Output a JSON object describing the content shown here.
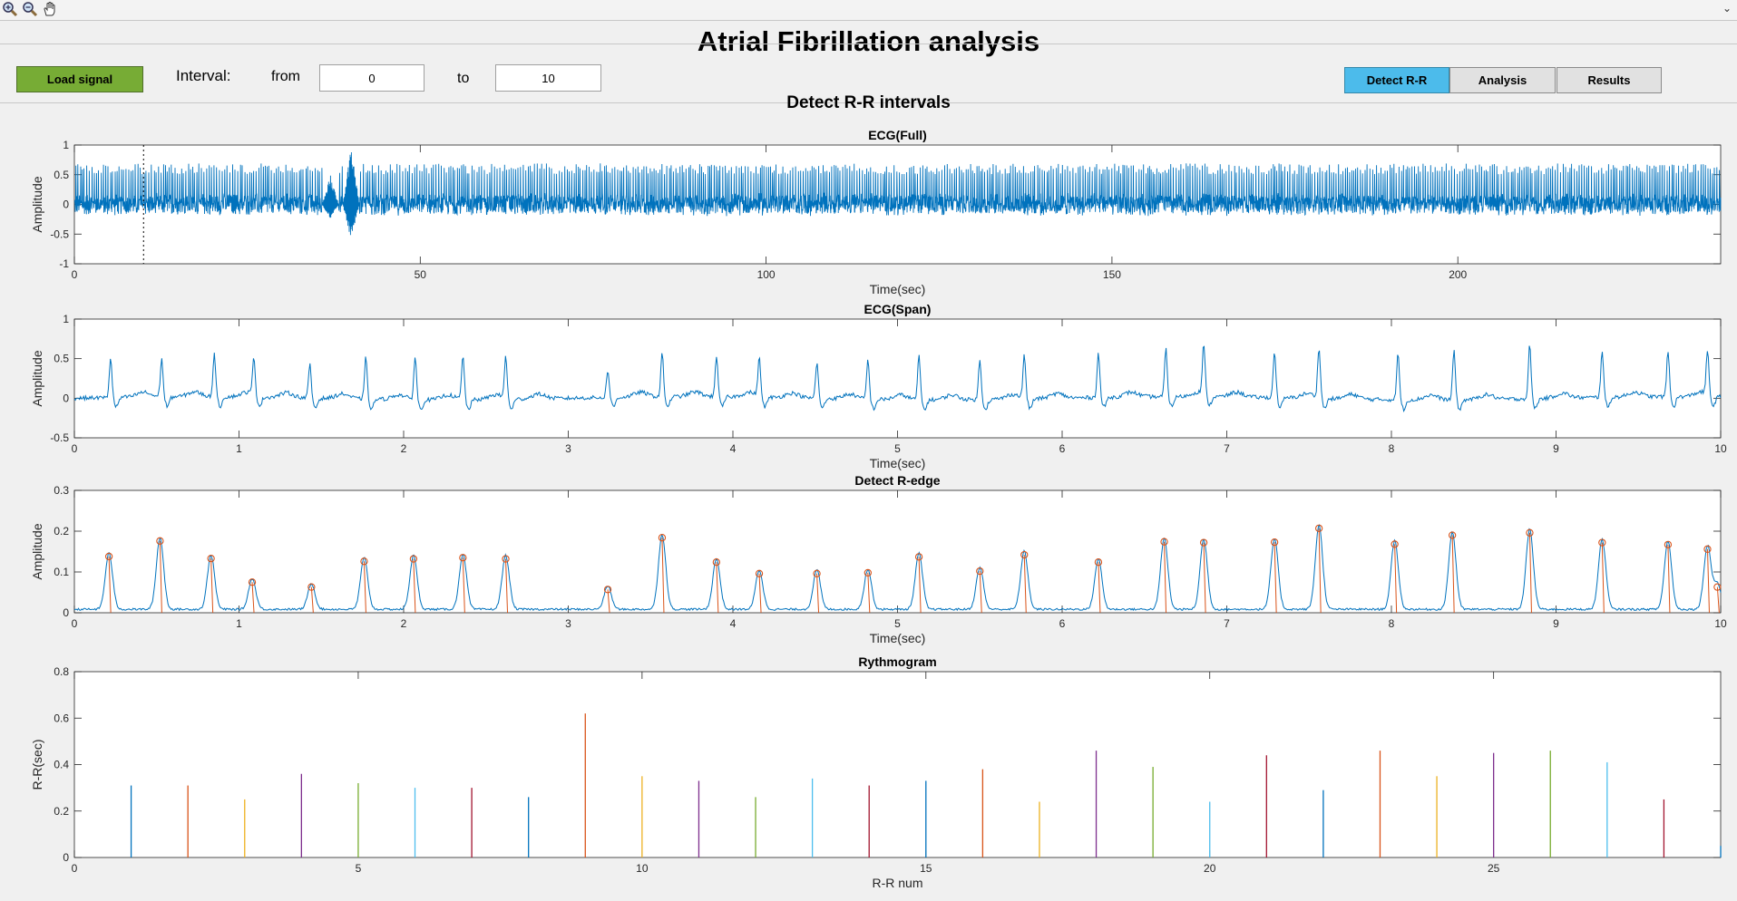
{
  "toolbar": {
    "icons": [
      "zoom-in-icon",
      "zoom-out-icon",
      "pan-hand-icon"
    ],
    "collapse_icon": "⌄"
  },
  "window": {
    "title": "Atrial Fibrillation analysis"
  },
  "controls": {
    "load_label": "Load signal",
    "interval_label": "Interval:",
    "from_label": "from",
    "from_value": "0",
    "to_label": "to",
    "to_value": "10"
  },
  "tabs": [
    {
      "label": "Detect R-R",
      "active": true
    },
    {
      "label": "Analysis",
      "active": false
    },
    {
      "label": "Results",
      "active": false
    }
  ],
  "section_title": "Detect R-R intervals",
  "colors": {
    "accent_green": "#77ac35",
    "active_tab": "#4cbbeb",
    "signal": "#0072bd",
    "peak_marker": "#d95319"
  },
  "chart_data": [
    {
      "type": "line",
      "title": "ECG(Full)",
      "xlabel": "Time(sec)",
      "ylabel": "Amplitude",
      "xlim": [
        0,
        238
      ],
      "ylim": [
        -1,
        1
      ],
      "xticks": [
        0,
        50,
        100,
        150,
        200
      ],
      "yticks": [
        -1,
        -0.5,
        0,
        0.5,
        1
      ],
      "cursor_x": 10,
      "series": [
        {
          "description": "continuous ECG, QRS spikes to ~0.6-0.8, baseline noise about ±0.2, artifact near 40 s from -0.65 to 1.0",
          "peak_interval_sec": 0.33,
          "peak_amplitude": 0.6,
          "noise_amplitude": 0.2,
          "artifacts": [
            {
              "x": 40,
              "ymin": -0.65,
              "ymax": 1.0
            },
            {
              "x": 37,
              "ymin": -0.25,
              "ymax": 0.5
            }
          ]
        }
      ]
    },
    {
      "type": "line",
      "title": "ECG(Span)",
      "xlabel": "Time(sec)",
      "ylabel": "Amplitude",
      "xlim": [
        0,
        10
      ],
      "ylim": [
        -0.5,
        1
      ],
      "xticks": [
        0,
        1,
        2,
        3,
        4,
        5,
        6,
        7,
        8,
        9,
        10
      ],
      "yticks": [
        -0.5,
        0,
        0.5,
        1
      ],
      "peaks": [
        {
          "t": 0.22,
          "a": 0.5
        },
        {
          "t": 0.53,
          "a": 0.48
        },
        {
          "t": 0.85,
          "a": 0.55
        },
        {
          "t": 1.09,
          "a": 0.45
        },
        {
          "t": 1.43,
          "a": 0.42
        },
        {
          "t": 1.77,
          "a": 0.52
        },
        {
          "t": 2.07,
          "a": 0.54
        },
        {
          "t": 2.36,
          "a": 0.55
        },
        {
          "t": 2.62,
          "a": 0.52
        },
        {
          "t": 3.24,
          "a": 0.35
        },
        {
          "t": 3.57,
          "a": 0.55
        },
        {
          "t": 3.9,
          "a": 0.52
        },
        {
          "t": 4.16,
          "a": 0.48
        },
        {
          "t": 4.51,
          "a": 0.45
        },
        {
          "t": 4.82,
          "a": 0.5
        },
        {
          "t": 5.13,
          "a": 0.55
        },
        {
          "t": 5.5,
          "a": 0.5
        },
        {
          "t": 5.77,
          "a": 0.55
        },
        {
          "t": 6.22,
          "a": 0.57
        },
        {
          "t": 6.63,
          "a": 0.6
        },
        {
          "t": 6.86,
          "a": 0.62
        },
        {
          "t": 7.29,
          "a": 0.58
        },
        {
          "t": 7.56,
          "a": 0.65
        },
        {
          "t": 8.04,
          "a": 0.58
        },
        {
          "t": 8.38,
          "a": 0.63
        },
        {
          "t": 8.84,
          "a": 0.68
        },
        {
          "t": 9.28,
          "a": 0.6
        },
        {
          "t": 9.68,
          "a": 0.58
        },
        {
          "t": 9.92,
          "a": 0.55
        }
      ]
    },
    {
      "type": "line",
      "title": "Detect R-edge",
      "xlabel": "Time(sec)",
      "ylabel": "Amplitude",
      "xlim": [
        0,
        10
      ],
      "ylim": [
        0,
        0.3
      ],
      "xticks": [
        0,
        1,
        2,
        3,
        4,
        5,
        6,
        7,
        8,
        9,
        10
      ],
      "yticks": [
        0,
        0.1,
        0.2,
        0.3
      ],
      "detected_peaks": [
        {
          "t": 0.21,
          "a": 0.138
        },
        {
          "t": 0.52,
          "a": 0.176
        },
        {
          "t": 0.83,
          "a": 0.133
        },
        {
          "t": 1.08,
          "a": 0.075
        },
        {
          "t": 1.44,
          "a": 0.063
        },
        {
          "t": 1.76,
          "a": 0.126
        },
        {
          "t": 2.06,
          "a": 0.132
        },
        {
          "t": 2.36,
          "a": 0.135
        },
        {
          "t": 2.62,
          "a": 0.132
        },
        {
          "t": 3.24,
          "a": 0.057
        },
        {
          "t": 3.57,
          "a": 0.184
        },
        {
          "t": 3.9,
          "a": 0.124
        },
        {
          "t": 4.16,
          "a": 0.096
        },
        {
          "t": 4.51,
          "a": 0.096
        },
        {
          "t": 4.82,
          "a": 0.098
        },
        {
          "t": 5.13,
          "a": 0.137
        },
        {
          "t": 5.5,
          "a": 0.102
        },
        {
          "t": 5.77,
          "a": 0.142
        },
        {
          "t": 6.22,
          "a": 0.124
        },
        {
          "t": 6.62,
          "a": 0.174
        },
        {
          "t": 6.86,
          "a": 0.172
        },
        {
          "t": 7.29,
          "a": 0.173
        },
        {
          "t": 7.56,
          "a": 0.207
        },
        {
          "t": 8.02,
          "a": 0.168
        },
        {
          "t": 8.37,
          "a": 0.19
        },
        {
          "t": 8.84,
          "a": 0.196
        },
        {
          "t": 9.28,
          "a": 0.172
        },
        {
          "t": 9.68,
          "a": 0.167
        },
        {
          "t": 9.92,
          "a": 0.156
        },
        {
          "t": 9.98,
          "a": 0.063
        }
      ]
    },
    {
      "type": "bar",
      "title": "Rythmogram",
      "xlabel": "R-R num",
      "ylabel": "R-R(sec)",
      "xlim": [
        0,
        29
      ],
      "ylim": [
        0,
        0.8
      ],
      "xticks": [
        0,
        5,
        10,
        15,
        20,
        25
      ],
      "yticks": [
        0,
        0.2,
        0.4,
        0.6,
        0.8
      ],
      "values": [
        0.31,
        0.31,
        0.25,
        0.36,
        0.32,
        0.3,
        0.3,
        0.26,
        0.62,
        0.35,
        0.33,
        0.26,
        0.34,
        0.31,
        0.33,
        0.38,
        0.24,
        0.46,
        0.39,
        0.24,
        0.44,
        0.29,
        0.46,
        0.35,
        0.45,
        0.46,
        0.41,
        0.25,
        0.05
      ],
      "colors": [
        "#0072bd",
        "#d95319",
        "#edb120",
        "#7e2f8e",
        "#77ac30",
        "#4dbeee",
        "#a2142f"
      ]
    }
  ]
}
